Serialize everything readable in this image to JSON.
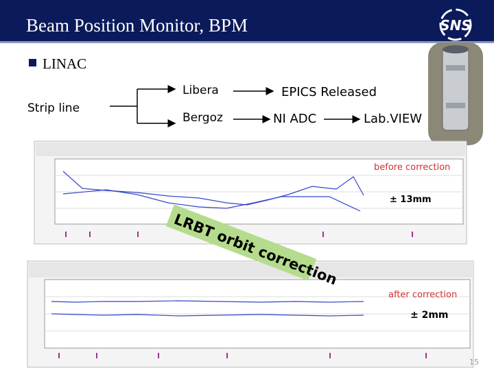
{
  "header": {
    "title": "Beam Position Monitor, BPM"
  },
  "bullet": "LINAC",
  "diagram": {
    "source": "Strip line",
    "rows": [
      [
        "Libera",
        "EPICS Released"
      ],
      [
        "Bergoz",
        "NI ADC",
        "Lab.VIEW"
      ]
    ]
  },
  "plots": [
    {
      "note": "before correction",
      "range": "± 13mm"
    },
    {
      "note": "after correction",
      "range": "± 2mm"
    }
  ],
  "callout": "LRBT orbit correction",
  "page_number": "15"
}
